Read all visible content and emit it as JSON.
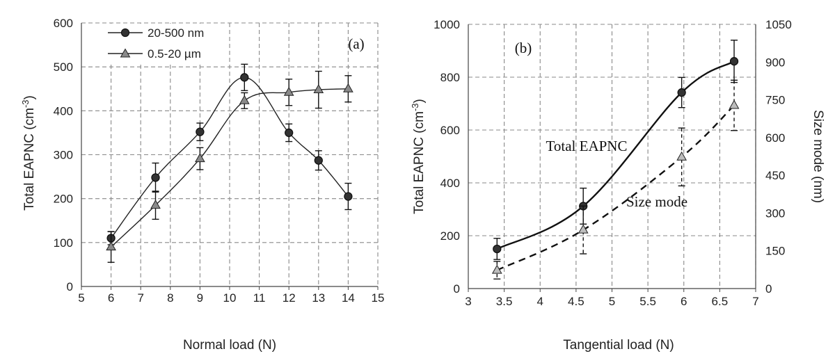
{
  "chart_data": [
    {
      "type": "line",
      "panel": "(a)",
      "xlabel": "Normal load (N)",
      "ylabel": "Total EAPNC (cm",
      "ylabel_sup": "-3",
      "ylabel_end": ")",
      "xlim": [
        5,
        15
      ],
      "ylim": [
        0,
        600
      ],
      "xticks": [
        "5",
        "6",
        "7",
        "8",
        "9",
        "10",
        "11",
        "12",
        "13",
        "14",
        "15"
      ],
      "yticks": [
        "0",
        "100",
        "200",
        "300",
        "400",
        "500",
        "600"
      ],
      "legend_position": "top-left",
      "series": [
        {
          "name": "20-500 nm",
          "marker": "circle",
          "x": [
            6,
            7.5,
            9,
            10.5,
            12,
            13,
            14
          ],
          "y": [
            110,
            248,
            352,
            476,
            350,
            287,
            205
          ],
          "err": [
            15,
            33,
            20,
            30,
            20,
            22,
            30
          ]
        },
        {
          "name": "0.5-20 µm",
          "marker": "triangle",
          "x": [
            6,
            7.5,
            9,
            10.5,
            12,
            13,
            14
          ],
          "y": [
            90,
            185,
            291,
            423,
            442,
            448,
            450
          ],
          "err": [
            35,
            32,
            25,
            18,
            30,
            42,
            30
          ]
        }
      ]
    },
    {
      "type": "line",
      "panel": "(b)",
      "xlabel": "Tangential load (N)",
      "ylabel": "Total EAPNC (cm",
      "ylabel_sup": "-3",
      "ylabel_end": ")",
      "y2label": "Size mode (nm)",
      "xlim": [
        3,
        7
      ],
      "ylim": [
        0,
        1000
      ],
      "y2lim": [
        0,
        1050
      ],
      "xticks": [
        "3",
        "3.5",
        "4",
        "4.5",
        "5",
        "5.5",
        "6",
        "6.5",
        "7"
      ],
      "yticks": [
        "0",
        "200",
        "400",
        "600",
        "800",
        "1000"
      ],
      "y2ticks": [
        "0",
        "150",
        "300",
        "450",
        "600",
        "750",
        "900",
        "1050"
      ],
      "annotations": [
        "Total EAPNC",
        "Size mode"
      ],
      "series": [
        {
          "name": "Total EAPNC",
          "axis": "left",
          "style": "solid",
          "marker": "circle",
          "x": [
            3.4,
            4.6,
            5.97,
            6.7
          ],
          "y": [
            150,
            312,
            742,
            860
          ],
          "err": [
            40,
            68,
            57,
            80
          ]
        },
        {
          "name": "Size mode",
          "axis": "right",
          "style": "dashed",
          "marker": "triangle",
          "x": [
            3.4,
            4.6,
            5.97,
            6.7
          ],
          "y": [
            73,
            233,
            523,
            728
          ],
          "err": [
            35,
            95,
            115,
            100
          ]
        }
      ]
    }
  ]
}
